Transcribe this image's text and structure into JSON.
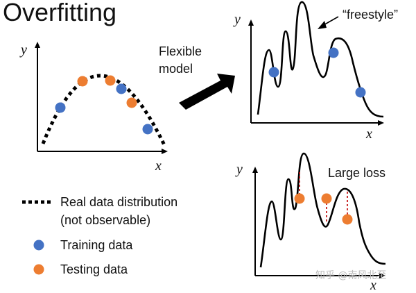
{
  "title": "Overfitting",
  "arrow_label": {
    "line1": "Flexible",
    "line2": "model"
  },
  "freestyle_label": "“freestyle”",
  "large_loss_label": "Large loss",
  "axis": {
    "x": "x",
    "y": "y"
  },
  "legend": {
    "real_line1": "Real data distribution",
    "real_line2": "(not observable)",
    "training": "Training data",
    "testing": "Testing data"
  },
  "watermark": "知乎 @南风北至",
  "colors": {
    "training": "#4472C4",
    "testing": "#ED7D31",
    "curve": "#000000",
    "loss_line": "#C00000"
  }
}
